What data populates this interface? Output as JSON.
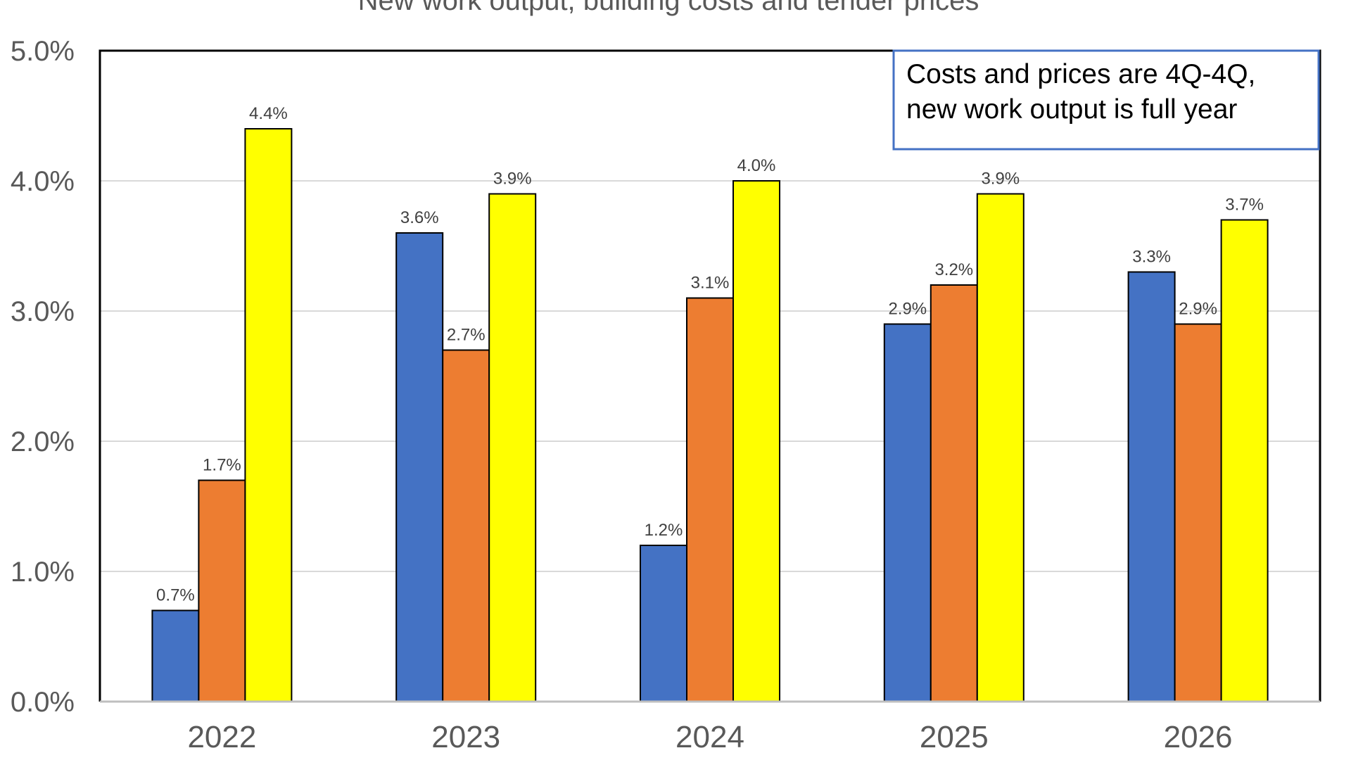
{
  "chart_data": {
    "type": "bar",
    "title": "New work output, building costs and tender prices",
    "categories": [
      "2022",
      "2023",
      "2024",
      "2025",
      "2026"
    ],
    "series": [
      {
        "values": [
          0.7,
          3.6,
          1.2,
          2.9,
          3.3
        ],
        "color": "#4472C4"
      },
      {
        "values": [
          1.7,
          2.7,
          3.1,
          3.2,
          2.9
        ],
        "color": "#ED7D31"
      },
      {
        "values": [
          4.4,
          3.9,
          4.0,
          3.9,
          3.7
        ],
        "color": "#FFFF00"
      }
    ],
    "data_labels": [
      [
        "0.7%",
        "3.6%",
        "1.2%",
        "2.9%",
        "3.3%"
      ],
      [
        "1.7%",
        "2.7%",
        "3.1%",
        "3.2%",
        "2.9%"
      ],
      [
        "4.4%",
        "3.9%",
        "4.0%",
        "3.9%",
        "3.7%"
      ]
    ],
    "y_ticks": [
      0,
      1,
      2,
      3,
      4,
      5
    ],
    "y_tick_labels": [
      "0.0%",
      "1.0%",
      "2.0%",
      "3.0%",
      "4.0%",
      "5.0%"
    ],
    "ylim": [
      0,
      5
    ],
    "grid": true,
    "note": {
      "lines": [
        "Costs and prices are 4Q-4Q,",
        "new work output is full year"
      ],
      "border_color": "#4472C4"
    }
  }
}
